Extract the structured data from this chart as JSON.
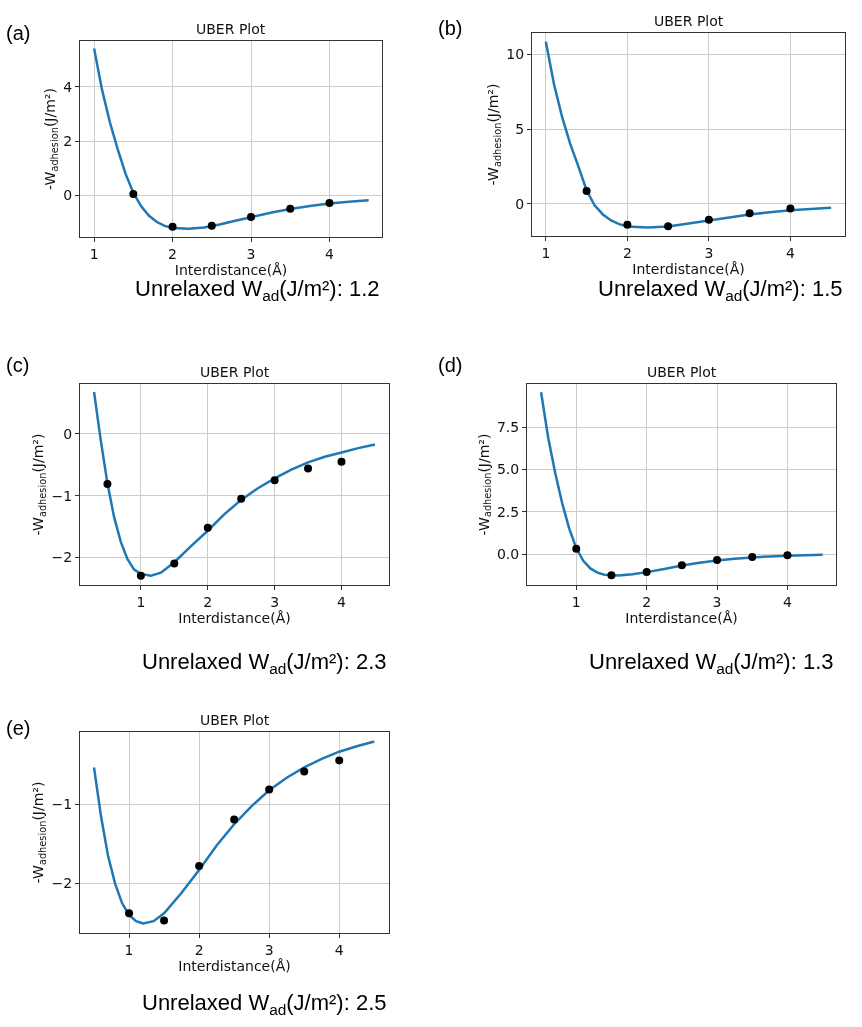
{
  "chart_data": [
    {
      "type": "line",
      "title": "UBER Plot",
      "xlabel": "Interdistance(Å)",
      "ylabel": "-W$_{adhesion}$(J/m²)",
      "xlim": [
        0.82,
        4.67
      ],
      "ylim": [
        -1.53,
        5.68
      ],
      "xticks": [
        1,
        2,
        3,
        4
      ],
      "yticks": [
        0,
        2,
        4
      ],
      "grid": true,
      "annotations": [
        "(a)",
        "Unrelaxed W$_{ad}$(J/m²): 1.2"
      ],
      "series": [
        {
          "color": "#1f77b4",
          "marker": "none",
          "x": [
            1.0,
            1.1,
            1.2,
            1.3,
            1.4,
            1.5,
            1.6,
            1.7,
            1.8,
            1.9,
            2.0,
            2.2,
            2.4,
            2.6,
            2.8,
            3.0,
            3.25,
            3.5,
            3.75,
            4.0,
            4.25,
            4.5
          ],
          "values": [
            5.4,
            3.9,
            2.7,
            1.7,
            0.8,
            0.1,
            -0.4,
            -0.75,
            -0.98,
            -1.12,
            -1.2,
            -1.23,
            -1.18,
            -1.07,
            -0.93,
            -0.8,
            -0.64,
            -0.5,
            -0.39,
            -0.3,
            -0.23,
            -0.18
          ]
        },
        {
          "type": "scatter",
          "color": "#000000",
          "marker": "circle",
          "x": [
            1.5,
            2,
            2.5,
            3,
            3.5,
            4
          ],
          "values": [
            0.05,
            -1.15,
            -1.12,
            -0.79,
            -0.49,
            -0.28
          ]
        }
      ]
    },
    {
      "type": "line",
      "title": "UBER Plot",
      "xlabel": "Interdistance(Å)",
      "ylabel": "-W$_{adhesion}$(J/m²)",
      "xlim": [
        0.83,
        4.67
      ],
      "ylim": [
        -2.14,
        11.43
      ],
      "xticks": [
        1,
        2,
        3,
        4
      ],
      "yticks": [
        0,
        5,
        10
      ],
      "grid": true,
      "annotations": [
        "(b)",
        "Unrelaxed W$_{ad}$(J/m²): 1.5"
      ],
      "series": [
        {
          "color": "#1f77b4",
          "marker": "none",
          "x": [
            1.0,
            1.1,
            1.2,
            1.3,
            1.4,
            1.5,
            1.6,
            1.7,
            1.8,
            1.9,
            2.0,
            2.25,
            2.5,
            2.75,
            3.0,
            3.25,
            3.5,
            3.75,
            4.0,
            4.25,
            4.5
          ],
          "values": [
            10.85,
            8.0,
            5.8,
            4.0,
            2.5,
            0.9,
            -0.1,
            -0.7,
            -1.1,
            -1.35,
            -1.5,
            -1.58,
            -1.5,
            -1.3,
            -1.1,
            -0.9,
            -0.7,
            -0.55,
            -0.42,
            -0.33,
            -0.25
          ]
        },
        {
          "type": "scatter",
          "color": "#000000",
          "marker": "circle",
          "x": [
            1.5,
            2,
            2.5,
            3,
            3.5,
            4
          ],
          "values": [
            0.87,
            -1.38,
            -1.49,
            -1.05,
            -0.62,
            -0.31
          ]
        }
      ]
    },
    {
      "type": "line",
      "title": "UBER Plot",
      "xlabel": "Interdistance(Å)",
      "ylabel": "-W$_{adhesion}$(J/m²)",
      "xlim": [
        0.09,
        4.71
      ],
      "ylim": [
        -2.45,
        0.81
      ],
      "xticks": [
        1,
        2,
        3,
        4
      ],
      "yticks": [
        {
          "value": -2,
          "label": "−2"
        },
        {
          "value": -1,
          "label": "−1"
        },
        0
      ],
      "grid": true,
      "annotations": [
        "(c)",
        "Unrelaxed W$_{ad}$(J/m²): 2.3"
      ],
      "series": [
        {
          "color": "#1f77b4",
          "marker": "none",
          "x": [
            0.3,
            0.4,
            0.5,
            0.6,
            0.7,
            0.8,
            0.9,
            1.0,
            1.15,
            1.3,
            1.5,
            1.75,
            2.0,
            2.25,
            2.5,
            2.75,
            3.0,
            3.25,
            3.5,
            3.75,
            4.0,
            4.25,
            4.5
          ],
          "values": [
            0.68,
            -0.1,
            -0.8,
            -1.35,
            -1.75,
            -2.03,
            -2.2,
            -2.27,
            -2.3,
            -2.25,
            -2.08,
            -1.82,
            -1.57,
            -1.3,
            -1.07,
            -0.88,
            -0.72,
            -0.58,
            -0.46,
            -0.37,
            -0.3,
            -0.23,
            -0.17
          ]
        },
        {
          "type": "scatter",
          "color": "#000000",
          "marker": "circle",
          "x": [
            0.5,
            1,
            1.5,
            2,
            2.5,
            3,
            3.5,
            4
          ],
          "values": [
            -0.81,
            -2.3,
            -2.1,
            -1.52,
            -1.05,
            -0.75,
            -0.56,
            -0.45
          ]
        }
      ]
    },
    {
      "type": "line",
      "title": "UBER Plot",
      "xlabel": "Interdistance(Å)",
      "ylabel": "-W$_{adhesion}$(J/m²)",
      "xlim": [
        0.3,
        4.69
      ],
      "ylim": [
        -1.83,
        10.04
      ],
      "xticks": [
        1,
        2,
        3,
        4
      ],
      "yticks": [
        {
          "value": 0,
          "label": "0.0"
        },
        {
          "value": 2.5,
          "label": "2.5"
        },
        {
          "value": 5,
          "label": "5.0"
        },
        {
          "value": 7.5,
          "label": "7.5"
        }
      ],
      "grid": true,
      "annotations": [
        "(d)",
        "Unrelaxed W$_{ad}$(J/m²): 1.3"
      ],
      "series": [
        {
          "color": "#1f77b4",
          "marker": "none",
          "x": [
            0.5,
            0.6,
            0.7,
            0.8,
            0.9,
            1.0,
            1.1,
            1.2,
            1.3,
            1.4,
            1.6,
            1.8,
            2.0,
            2.25,
            2.5,
            2.75,
            3.0,
            3.25,
            3.5,
            3.75,
            4.0,
            4.25,
            4.5
          ],
          "values": [
            9.55,
            6.9,
            4.8,
            3.0,
            1.5,
            0.35,
            -0.4,
            -0.85,
            -1.1,
            -1.22,
            -1.27,
            -1.2,
            -1.07,
            -0.88,
            -0.68,
            -0.52,
            -0.38,
            -0.28,
            -0.2,
            -0.14,
            -0.1,
            -0.07,
            -0.05
          ]
        },
        {
          "type": "scatter",
          "color": "#000000",
          "marker": "circle",
          "x": [
            1,
            1.5,
            2,
            2.5,
            3,
            3.5,
            4
          ],
          "values": [
            0.31,
            -1.26,
            -1.06,
            -0.67,
            -0.35,
            -0.18,
            -0.08
          ]
        }
      ]
    },
    {
      "type": "line",
      "title": "UBER Plot",
      "xlabel": "Interdistance(Å)",
      "ylabel": "-W$_{adhesion}$(J/m²)",
      "xlim": [
        0.3,
        4.71
      ],
      "ylim": [
        -2.63,
        -0.08
      ],
      "xticks": [
        1,
        2,
        3,
        4
      ],
      "yticks": [
        {
          "value": -2,
          "label": "−2"
        },
        {
          "value": -1,
          "label": "−1"
        }
      ],
      "grid": true,
      "annotations": [
        "(e)",
        "Unrelaxed W$_{ad}$(J/m²): 2.5"
      ],
      "series": [
        {
          "color": "#1f77b4",
          "marker": "none",
          "x": [
            0.5,
            0.6,
            0.7,
            0.8,
            0.9,
            1.0,
            1.1,
            1.2,
            1.35,
            1.5,
            1.75,
            2.0,
            2.25,
            2.5,
            2.75,
            3.0,
            3.25,
            3.5,
            3.75,
            4.0,
            4.25,
            4.5
          ],
          "values": [
            -0.53,
            -1.15,
            -1.65,
            -2.0,
            -2.25,
            -2.4,
            -2.48,
            -2.51,
            -2.48,
            -2.38,
            -2.12,
            -1.83,
            -1.52,
            -1.25,
            -1.02,
            -0.82,
            -0.66,
            -0.53,
            -0.42,
            -0.33,
            -0.26,
            -0.2
          ]
        },
        {
          "type": "scatter",
          "color": "#000000",
          "marker": "circle",
          "x": [
            1,
            1.5,
            2,
            2.5,
            3,
            3.5,
            4
          ],
          "values": [
            -2.38,
            -2.47,
            -1.78,
            -1.19,
            -0.81,
            -0.58,
            -0.44
          ]
        }
      ]
    }
  ]
}
